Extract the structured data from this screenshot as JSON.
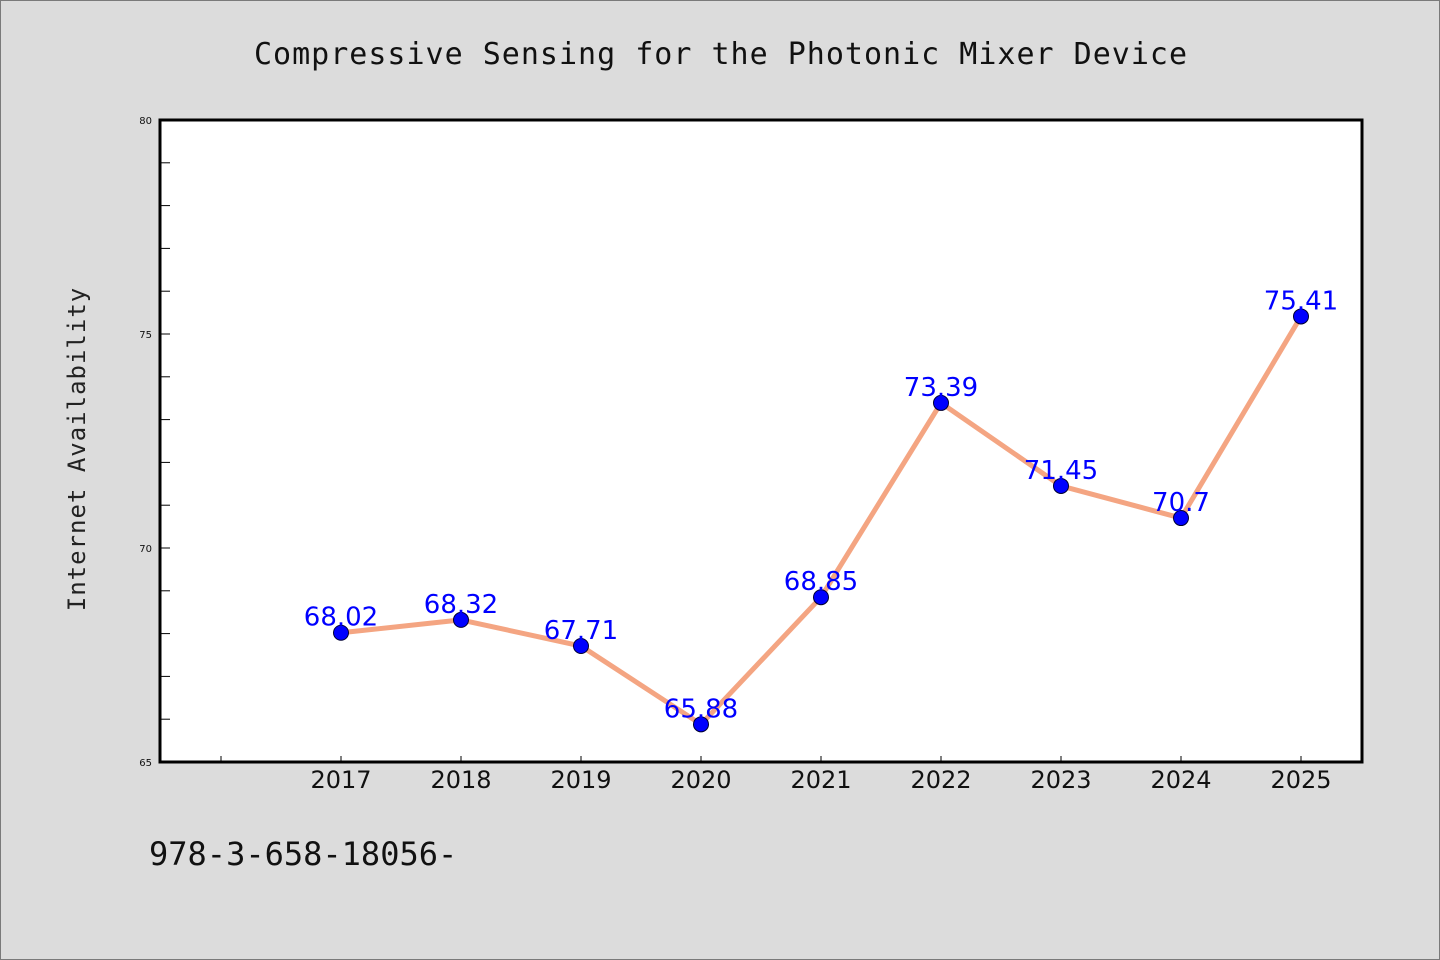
{
  "chart_data": {
    "type": "line",
    "title": "Compressive Sensing for the Photonic Mixer Device",
    "xlabel": "",
    "ylabel": "Internet Availability",
    "categories": [
      "2017",
      "2018",
      "2019",
      "2020",
      "2021",
      "2022",
      "2023",
      "2024",
      "2025"
    ],
    "series": [
      {
        "values": [
          68.02,
          68.32,
          67.71,
          65.88,
          68.85,
          73.39,
          71.45,
          70.7,
          75.41
        ],
        "labels": [
          "68.02",
          "68.32",
          "67.71",
          "65.88",
          "68.85",
          "73.39",
          "71.45",
          "70.7",
          "75.41"
        ]
      }
    ],
    "ylim": [
      65,
      80
    ],
    "yticks": [
      "65",
      "70",
      "75",
      "80"
    ],
    "grid": false,
    "legend": "none"
  },
  "footer": {
    "text": "978-3-658-18056-"
  },
  "colors": {
    "background": "#dcdcdc",
    "plot_background": "#ffffff",
    "line": "#f4a582",
    "marker": "#0000ff",
    "data_label": "#0000ff"
  }
}
